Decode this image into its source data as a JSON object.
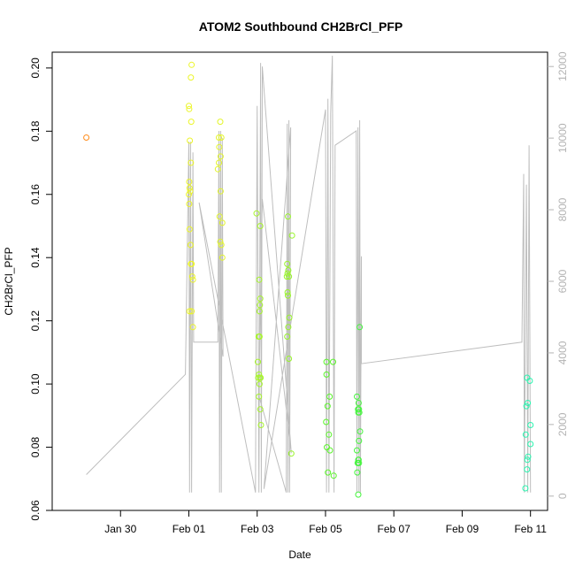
{
  "chart_data": {
    "type": "scatter",
    "title": "ATOM2 Southbound CH2BrCl_PFP",
    "xlabel": "Date",
    "ylabel": "CH2BrCl_PFP",
    "x_unit": "days since Jan 30 00:00",
    "xlim": [
      -2.0,
      12.5
    ],
    "x_ticks": [
      {
        "value": 0,
        "label": "Jan 30"
      },
      {
        "value": 2,
        "label": "Feb 01"
      },
      {
        "value": 4,
        "label": "Feb 03"
      },
      {
        "value": 6,
        "label": "Feb 05"
      },
      {
        "value": 8,
        "label": "Feb 07"
      },
      {
        "value": 10,
        "label": "Feb 09"
      },
      {
        "value": 12,
        "label": "Feb 11"
      }
    ],
    "ylim": [
      0.06,
      0.205
    ],
    "y_ticks": [
      0.06,
      0.08,
      0.1,
      0.12,
      0.14,
      0.16,
      0.18,
      0.2
    ],
    "y2lim": [
      -400,
      12400
    ],
    "y2_ticks": [
      0,
      2000,
      4000,
      6000,
      8000,
      10000,
      12000
    ],
    "y2_label": "",
    "y2_color": "#b3b3b3",
    "altitude_color": "#bebebe",
    "points": [
      {
        "x": -1.0,
        "y": 0.178,
        "c": "#ff8c1a"
      },
      {
        "x": 2.0,
        "y": 0.188,
        "c": "#ecf52a"
      },
      {
        "x": 2.01,
        "y": 0.187,
        "c": "#ecf52a"
      },
      {
        "x": 2.08,
        "y": 0.201,
        "c": "#ecf52a"
      },
      {
        "x": 2.06,
        "y": 0.197,
        "c": "#ecf52a"
      },
      {
        "x": 2.07,
        "y": 0.183,
        "c": "#ecf52a"
      },
      {
        "x": 2.03,
        "y": 0.177,
        "c": "#ecf52a"
      },
      {
        "x": 2.06,
        "y": 0.17,
        "c": "#ecf52a"
      },
      {
        "x": 2.01,
        "y": 0.164,
        "c": "#ecf52a"
      },
      {
        "x": 2.02,
        "y": 0.162,
        "c": "#ecf52a"
      },
      {
        "x": 2.04,
        "y": 0.161,
        "c": "#ecf52a"
      },
      {
        "x": 2.0,
        "y": 0.16,
        "c": "#ecf52a"
      },
      {
        "x": 2.01,
        "y": 0.157,
        "c": "#ecf52a"
      },
      {
        "x": 2.02,
        "y": 0.149,
        "c": "#ecf52a"
      },
      {
        "x": 2.05,
        "y": 0.144,
        "c": "#ecf52a"
      },
      {
        "x": 2.06,
        "y": 0.138,
        "c": "#ecf52a"
      },
      {
        "x": 2.08,
        "y": 0.138,
        "c": "#ecf52a"
      },
      {
        "x": 2.1,
        "y": 0.134,
        "c": "#ecf52a"
      },
      {
        "x": 2.12,
        "y": 0.133,
        "c": "#ecf52a"
      },
      {
        "x": 2.02,
        "y": 0.123,
        "c": "#ecf52a"
      },
      {
        "x": 2.08,
        "y": 0.123,
        "c": "#ecf52a"
      },
      {
        "x": 2.12,
        "y": 0.118,
        "c": "#ecf52a"
      },
      {
        "x": 2.92,
        "y": 0.183,
        "c": "#e3f52a"
      },
      {
        "x": 2.88,
        "y": 0.178,
        "c": "#e3f52a"
      },
      {
        "x": 2.95,
        "y": 0.178,
        "c": "#e3f52a"
      },
      {
        "x": 2.89,
        "y": 0.175,
        "c": "#e3f52a"
      },
      {
        "x": 2.93,
        "y": 0.172,
        "c": "#e3f52a"
      },
      {
        "x": 2.88,
        "y": 0.17,
        "c": "#e3f52a"
      },
      {
        "x": 2.85,
        "y": 0.168,
        "c": "#e3f52a"
      },
      {
        "x": 2.93,
        "y": 0.161,
        "c": "#e3f52a"
      },
      {
        "x": 2.9,
        "y": 0.153,
        "c": "#e3f52a"
      },
      {
        "x": 2.98,
        "y": 0.151,
        "c": "#e3f52a"
      },
      {
        "x": 2.92,
        "y": 0.145,
        "c": "#e3f52a"
      },
      {
        "x": 2.95,
        "y": 0.144,
        "c": "#e3f52a"
      },
      {
        "x": 2.98,
        "y": 0.14,
        "c": "#e3f52a"
      },
      {
        "x": 3.98,
        "y": 0.154,
        "c": "#a6f52a"
      },
      {
        "x": 4.09,
        "y": 0.15,
        "c": "#a6f52a"
      },
      {
        "x": 4.06,
        "y": 0.133,
        "c": "#a6f52a"
      },
      {
        "x": 4.09,
        "y": 0.127,
        "c": "#a6f52a"
      },
      {
        "x": 4.08,
        "y": 0.125,
        "c": "#a6f52a"
      },
      {
        "x": 4.07,
        "y": 0.123,
        "c": "#a6f52a"
      },
      {
        "x": 4.04,
        "y": 0.115,
        "c": "#a6f52a"
      },
      {
        "x": 4.07,
        "y": 0.115,
        "c": "#a6f52a"
      },
      {
        "x": 4.02,
        "y": 0.107,
        "c": "#a6f52a"
      },
      {
        "x": 4.05,
        "y": 0.103,
        "c": "#a6f52a"
      },
      {
        "x": 4.03,
        "y": 0.102,
        "c": "#a6f52a"
      },
      {
        "x": 4.08,
        "y": 0.102,
        "c": "#a6f52a"
      },
      {
        "x": 4.1,
        "y": 0.102,
        "c": "#a6f52a"
      },
      {
        "x": 4.07,
        "y": 0.1,
        "c": "#a6f52a"
      },
      {
        "x": 4.05,
        "y": 0.096,
        "c": "#a6f52a"
      },
      {
        "x": 4.09,
        "y": 0.092,
        "c": "#a6f52a"
      },
      {
        "x": 4.11,
        "y": 0.087,
        "c": "#a6f52a"
      },
      {
        "x": 4.9,
        "y": 0.153,
        "c": "#98f52a"
      },
      {
        "x": 5.02,
        "y": 0.147,
        "c": "#98f52a"
      },
      {
        "x": 4.88,
        "y": 0.138,
        "c": "#98f52a"
      },
      {
        "x": 4.91,
        "y": 0.136,
        "c": "#98f52a"
      },
      {
        "x": 4.89,
        "y": 0.135,
        "c": "#98f52a"
      },
      {
        "x": 4.93,
        "y": 0.134,
        "c": "#98f52a"
      },
      {
        "x": 4.87,
        "y": 0.134,
        "c": "#98f52a"
      },
      {
        "x": 4.89,
        "y": 0.129,
        "c": "#98f52a"
      },
      {
        "x": 4.9,
        "y": 0.128,
        "c": "#98f52a"
      },
      {
        "x": 4.94,
        "y": 0.121,
        "c": "#98f52a"
      },
      {
        "x": 4.91,
        "y": 0.118,
        "c": "#98f52a"
      },
      {
        "x": 4.88,
        "y": 0.115,
        "c": "#98f52a"
      },
      {
        "x": 4.93,
        "y": 0.108,
        "c": "#98f52a"
      },
      {
        "x": 5.0,
        "y": 0.078,
        "c": "#98f52a"
      },
      {
        "x": 6.03,
        "y": 0.107,
        "c": "#5af52a"
      },
      {
        "x": 6.22,
        "y": 0.107,
        "c": "#5af52a"
      },
      {
        "x": 6.03,
        "y": 0.103,
        "c": "#5af52a"
      },
      {
        "x": 6.12,
        "y": 0.096,
        "c": "#5af52a"
      },
      {
        "x": 6.06,
        "y": 0.093,
        "c": "#5af52a"
      },
      {
        "x": 6.02,
        "y": 0.088,
        "c": "#5af52a"
      },
      {
        "x": 6.1,
        "y": 0.084,
        "c": "#5af52a"
      },
      {
        "x": 6.04,
        "y": 0.08,
        "c": "#5af52a"
      },
      {
        "x": 6.13,
        "y": 0.079,
        "c": "#5af52a"
      },
      {
        "x": 6.07,
        "y": 0.072,
        "c": "#5af52a"
      },
      {
        "x": 6.24,
        "y": 0.071,
        "c": "#5af52a"
      },
      {
        "x": 7.0,
        "y": 0.118,
        "c": "#44f53c"
      },
      {
        "x": 6.92,
        "y": 0.096,
        "c": "#44f53c"
      },
      {
        "x": 6.97,
        "y": 0.094,
        "c": "#44f53c"
      },
      {
        "x": 6.95,
        "y": 0.092,
        "c": "#44f53c"
      },
      {
        "x": 6.98,
        "y": 0.092,
        "c": "#44f53c"
      },
      {
        "x": 6.96,
        "y": 0.091,
        "c": "#44f53c"
      },
      {
        "x": 6.99,
        "y": 0.091,
        "c": "#44f53c"
      },
      {
        "x": 7.01,
        "y": 0.085,
        "c": "#44f53c"
      },
      {
        "x": 6.98,
        "y": 0.082,
        "c": "#44f53c"
      },
      {
        "x": 6.92,
        "y": 0.079,
        "c": "#44f53c"
      },
      {
        "x": 6.96,
        "y": 0.076,
        "c": "#44f53c"
      },
      {
        "x": 6.94,
        "y": 0.075,
        "c": "#44f53c"
      },
      {
        "x": 6.95,
        "y": 0.075,
        "c": "#44f53c"
      },
      {
        "x": 6.97,
        "y": 0.076,
        "c": "#44f53c"
      },
      {
        "x": 6.98,
        "y": 0.075,
        "c": "#44f53c"
      },
      {
        "x": 6.93,
        "y": 0.072,
        "c": "#44f53c"
      },
      {
        "x": 6.96,
        "y": 0.065,
        "c": "#44f53c"
      },
      {
        "x": 11.9,
        "y": 0.102,
        "c": "#2af5b0"
      },
      {
        "x": 11.98,
        "y": 0.101,
        "c": "#2af5b0"
      },
      {
        "x": 11.92,
        "y": 0.094,
        "c": "#2af5b0"
      },
      {
        "x": 11.88,
        "y": 0.093,
        "c": "#2af5b0"
      },
      {
        "x": 12.0,
        "y": 0.087,
        "c": "#2af5b0"
      },
      {
        "x": 11.86,
        "y": 0.084,
        "c": "#2af5b0"
      },
      {
        "x": 12.0,
        "y": 0.081,
        "c": "#2af5b0"
      },
      {
        "x": 11.93,
        "y": 0.077,
        "c": "#2af5b0"
      },
      {
        "x": 11.91,
        "y": 0.076,
        "c": "#2af5b0"
      },
      {
        "x": 11.9,
        "y": 0.073,
        "c": "#2af5b0"
      },
      {
        "x": 11.85,
        "y": 0.067,
        "c": "#2af5b0"
      }
    ],
    "altitude_track": [
      [
        -1.0,
        600
      ],
      [
        1.9,
        3400
      ],
      [
        2.0,
        9900
      ],
      [
        2.02,
        100
      ],
      [
        2.05,
        9900
      ],
      [
        2.08,
        100
      ],
      [
        2.12,
        9600
      ],
      [
        2.14,
        4300
      ],
      [
        2.85,
        4300
      ],
      [
        2.88,
        10200
      ],
      [
        2.9,
        100
      ],
      [
        2.93,
        10200
      ],
      [
        2.95,
        100
      ],
      [
        2.98,
        10000
      ],
      [
        3.0,
        3900
      ],
      [
        2.3,
        8200
      ],
      [
        3.95,
        100
      ],
      [
        4.0,
        10900
      ],
      [
        4.05,
        100
      ],
      [
        4.1,
        12100
      ],
      [
        4.12,
        100
      ],
      [
        4.15,
        12000
      ],
      [
        5.0,
        1200
      ],
      [
        4.15,
        8300
      ],
      [
        4.05,
        2800
      ],
      [
        4.85,
        100
      ],
      [
        4.88,
        10400
      ],
      [
        4.9,
        100
      ],
      [
        4.93,
        10500
      ],
      [
        4.95,
        100
      ],
      [
        4.98,
        10300
      ],
      [
        4.2,
        200
      ],
      [
        6.0,
        10800
      ],
      [
        6.03,
        100
      ],
      [
        6.07,
        11100
      ],
      [
        6.1,
        100
      ],
      [
        6.15,
        10700
      ],
      [
        6.2,
        12300
      ],
      [
        6.25,
        100
      ],
      [
        6.28,
        9800
      ],
      [
        6.9,
        10200
      ],
      [
        6.92,
        100
      ],
      [
        6.95,
        10300
      ],
      [
        6.98,
        100
      ],
      [
        7.0,
        10500
      ],
      [
        7.02,
        100
      ],
      [
        7.05,
        6700
      ],
      [
        7.05,
        3700
      ],
      [
        11.75,
        4300
      ],
      [
        11.8,
        9000
      ],
      [
        11.82,
        100
      ],
      [
        11.88,
        8700
      ],
      [
        11.92,
        100
      ],
      [
        11.96,
        9800
      ],
      [
        12.0,
        100
      ]
    ]
  }
}
